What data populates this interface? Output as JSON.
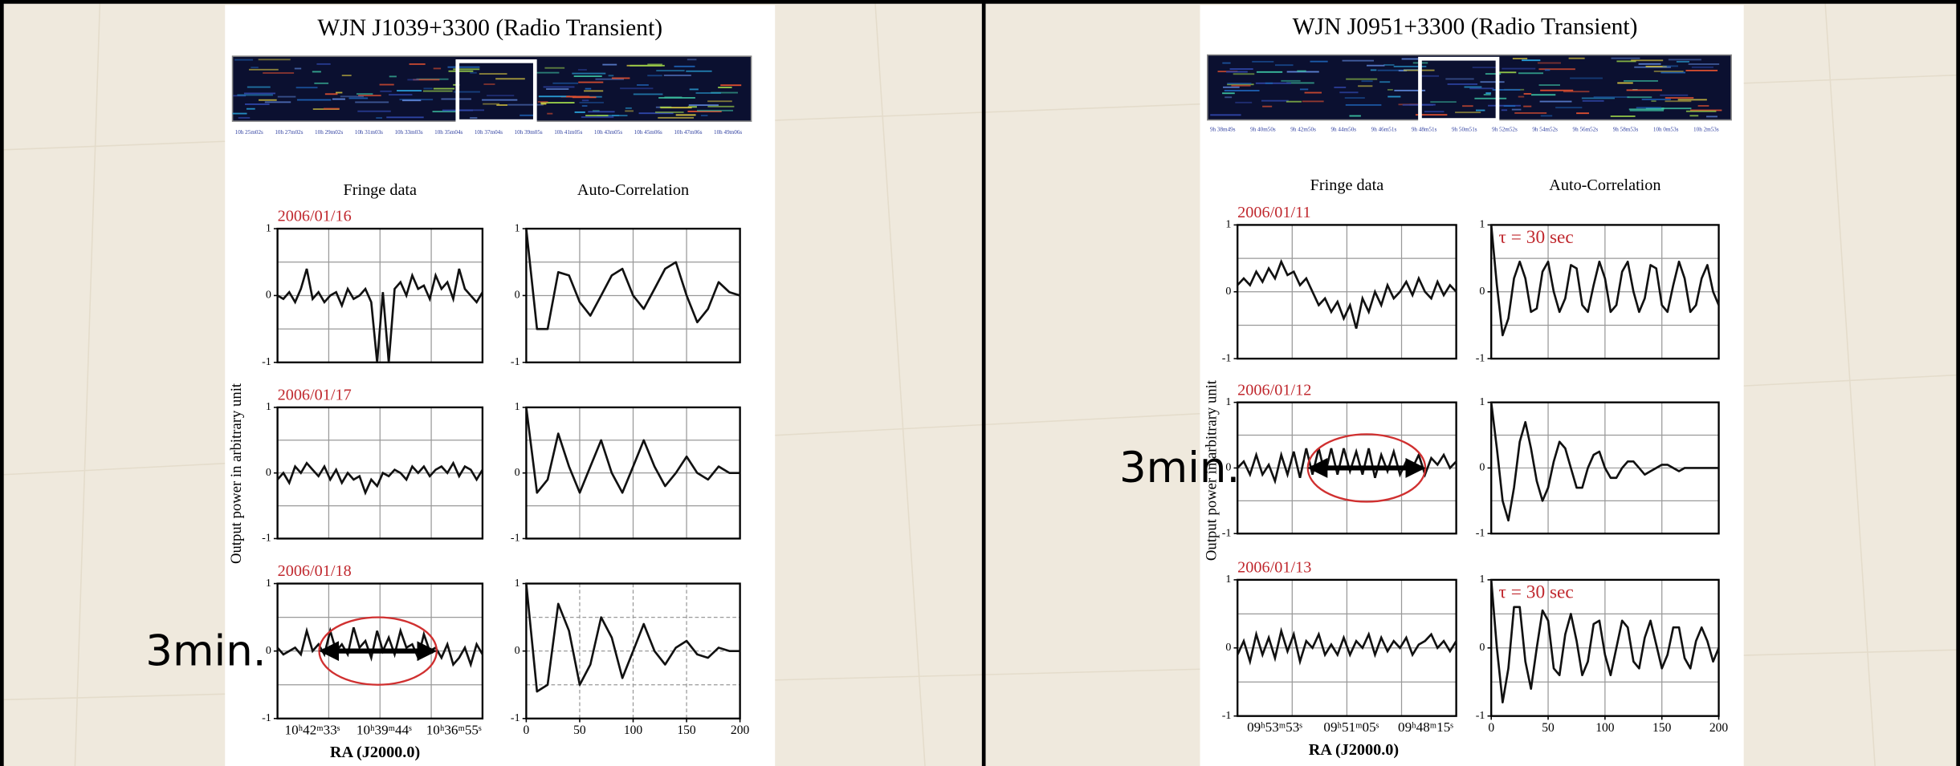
{
  "panels": [
    {
      "title": "WJN J1039+3300 (Radio Transient)",
      "spectrogram_labels": [
        "10h 25m02s",
        "10h 27m02s",
        "10h 29m02s",
        "10h 31m03s",
        "10h 33m03s",
        "10h 35m04s",
        "10h 37m04s",
        "10h 39m05s",
        "10h 41m05s",
        "10h 43m05s",
        "10h 45m06s",
        "10h 47m06s",
        "10h 49m06s"
      ],
      "fringe_title": "Fringe data",
      "auto_title": "Auto-Correlation",
      "y_label": "Output power in arbitrary unit",
      "x_label": "RA (J2000.0)",
      "fringe_xticks": [
        "10ʰ42ᵐ33ˢ",
        "10ʰ39ᵐ44ˢ",
        "10ʰ36ᵐ55ˢ"
      ],
      "ylim": [
        -1,
        1
      ],
      "yticks": [
        -1,
        0,
        1
      ],
      "lag_lim": [
        0,
        200
      ],
      "lag_ticks": [
        0,
        50,
        100,
        150,
        200
      ],
      "lags": [
        0,
        10,
        20,
        30,
        40,
        50,
        60,
        70,
        80,
        90,
        100,
        110,
        120,
        130,
        140,
        150,
        160,
        170,
        180,
        190,
        200
      ],
      "rows": [
        {
          "date": "2006/01/16",
          "fringe": [
            0,
            -0.05,
            0.05,
            -0.1,
            0.1,
            0.4,
            -0.05,
            0.05,
            -0.1,
            0,
            0.05,
            -0.15,
            0.1,
            -0.05,
            0,
            0.1,
            -0.1,
            -1,
            0.05,
            -1,
            0.1,
            0.2,
            0,
            0.3,
            0.1,
            0.15,
            -0.05,
            0.3,
            0.1,
            0.2,
            -0.05,
            0.4,
            0.1,
            0,
            -0.1,
            0.05
          ],
          "auto": [
            1,
            -0.5,
            -0.5,
            0.35,
            0.3,
            -0.1,
            -0.3,
            0,
            0.3,
            0.4,
            0,
            -0.2,
            0.1,
            0.4,
            0.5,
            0,
            -0.4,
            -0.2,
            0.2,
            0.05,
            0
          ]
        },
        {
          "date": "2006/01/17",
          "fringe": [
            -0.1,
            0,
            -0.15,
            0.1,
            0,
            0.15,
            0.05,
            -0.05,
            0.1,
            -0.1,
            0.05,
            -0.15,
            0,
            -0.1,
            -0.05,
            -0.3,
            -0.1,
            -0.2,
            0,
            -0.05,
            0.05,
            0,
            -0.1,
            0.1,
            0,
            0.1,
            -0.05,
            0.05,
            0.1,
            0,
            0.15,
            -0.05,
            0.1,
            0.05,
            -0.1,
            0.05
          ],
          "auto": [
            1,
            -0.3,
            -0.1,
            0.6,
            0.1,
            -0.3,
            0.1,
            0.5,
            0,
            -0.3,
            0.1,
            0.5,
            0.1,
            -0.2,
            0,
            0.25,
            0,
            -0.1,
            0.1,
            0,
            0
          ]
        },
        {
          "date": "2006/01/18",
          "annotation": "3min.",
          "fringe": [
            0.05,
            -0.05,
            0,
            0.05,
            -0.05,
            0.3,
            0,
            0.1,
            -0.05,
            0.3,
            0,
            0.1,
            -0.05,
            0.35,
            0.05,
            0.15,
            -0.1,
            0.3,
            0,
            0.2,
            -0.05,
            0.3,
            0.05,
            0.1,
            -0.1,
            0.25,
            0,
            0.05,
            -0.1,
            0.1,
            -0.2,
            -0.1,
            0.05,
            -0.2,
            0.1,
            -0.05
          ],
          "auto": [
            1,
            -0.6,
            -0.5,
            0.7,
            0.3,
            -0.5,
            -0.2,
            0.5,
            0.2,
            -0.4,
            0,
            0.4,
            0,
            -0.2,
            0.05,
            0.15,
            -0.05,
            -0.1,
            0.05,
            0,
            0
          ]
        }
      ]
    },
    {
      "title": "WJN J0951+3300 (Radio Transient)",
      "spectrogram_labels": [
        "9h 38m49s",
        "9h 40m50s",
        "9h 42m50s",
        "9h 44m50s",
        "9h 46m51s",
        "9h 48m51s",
        "9h 50m51s",
        "9h 52m52s",
        "9h 54m52s",
        "9h 56m52s",
        "9h 58m53s",
        "10h 0m53s",
        "10h 2m53s"
      ],
      "fringe_title": "Fringe data",
      "auto_title": "Auto-Correlation",
      "y_label": "Output power in arbitrary unit",
      "x_label": "RA (J2000.0)",
      "fringe_xticks": [
        "09ʰ53ᵐ53ˢ",
        "09ʰ51ᵐ05ˢ",
        "09ʰ48ᵐ15ˢ"
      ],
      "ylim": [
        -1,
        1
      ],
      "yticks": [
        -1,
        0,
        1
      ],
      "lag_lim": [
        0,
        200
      ],
      "lag_ticks": [
        0,
        50,
        100,
        150,
        200
      ],
      "lags": [
        0,
        5,
        10,
        15,
        20,
        25,
        30,
        35,
        40,
        45,
        50,
        55,
        60,
        65,
        70,
        75,
        80,
        85,
        90,
        95,
        100,
        105,
        110,
        115,
        120,
        125,
        130,
        135,
        140,
        145,
        150,
        155,
        160,
        165,
        170,
        175,
        180,
        185,
        190,
        195,
        200
      ],
      "rows": [
        {
          "date": "2006/01/11",
          "auto_note": "τ = 30 sec",
          "fringe": [
            0.1,
            0.2,
            0.1,
            0.3,
            0.15,
            0.35,
            0.2,
            0.45,
            0.25,
            0.3,
            0.1,
            0.2,
            0,
            -0.2,
            -0.1,
            -0.3,
            -0.15,
            -0.4,
            -0.2,
            -0.55,
            -0.1,
            -0.3,
            0,
            -0.2,
            0.1,
            -0.1,
            0,
            0.15,
            -0.05,
            0.2,
            0,
            -0.1,
            0.15,
            -0.05,
            0.1,
            0
          ],
          "auto": [
            1,
            0.1,
            -0.65,
            -0.4,
            0.2,
            0.45,
            0.2,
            -0.3,
            -0.25,
            0.3,
            0.45,
            0,
            -0.3,
            -0.1,
            0.4,
            0.35,
            -0.2,
            -0.3,
            0.1,
            0.45,
            0.2,
            -0.3,
            -0.2,
            0.3,
            0.45,
            0,
            -0.3,
            -0.1,
            0.4,
            0.35,
            -0.2,
            -0.3,
            0.1,
            0.45,
            0.2,
            -0.3,
            -0.2,
            0.2,
            0.4,
            0,
            -0.2
          ]
        },
        {
          "date": "2006/01/12",
          "annotation": "3min.",
          "fringe": [
            0,
            0.1,
            -0.1,
            0.2,
            -0.1,
            0.05,
            -0.2,
            0.2,
            -0.1,
            0.25,
            -0.15,
            0.3,
            -0.1,
            0.3,
            -0.1,
            0.3,
            -0.1,
            0.3,
            -0.05,
            0.25,
            -0.1,
            0.3,
            -0.15,
            0.2,
            -0.05,
            0.25,
            -0.1,
            0.1,
            0,
            0.2,
            -0.1,
            0.15,
            0.05,
            0.2,
            0,
            0.1
          ],
          "auto": [
            1,
            0.3,
            -0.5,
            -0.8,
            -0.3,
            0.4,
            0.7,
            0.3,
            -0.2,
            -0.5,
            -0.3,
            0.1,
            0.4,
            0.3,
            0,
            -0.3,
            -0.3,
            0,
            0.2,
            0.25,
            0,
            -0.15,
            -0.15,
            0,
            0.1,
            0.1,
            0,
            -0.1,
            -0.05,
            0,
            0.05,
            0.05,
            0,
            -0.05,
            0,
            0,
            0,
            0,
            0,
            0,
            0
          ]
        },
        {
          "date": "2006/01/13",
          "auto_note": "τ = 30 sec",
          "fringe": [
            -0.1,
            0.1,
            -0.2,
            0.2,
            -0.1,
            0.15,
            -0.15,
            0.25,
            -0.05,
            0.2,
            -0.2,
            0.1,
            0,
            0.2,
            -0.1,
            0.05,
            -0.1,
            0.15,
            -0.1,
            0.1,
            0,
            0.2,
            -0.1,
            0.15,
            -0.05,
            0.1,
            0,
            0.15,
            -0.1,
            0.05,
            0.1,
            0.2,
            0,
            0.1,
            -0.05,
            0.1
          ],
          "auto": [
            1,
            0,
            -0.8,
            -0.3,
            0.6,
            0.6,
            -0.2,
            -0.6,
            0,
            0.55,
            0.4,
            -0.3,
            -0.4,
            0.2,
            0.5,
            0.1,
            -0.4,
            -0.2,
            0.35,
            0.4,
            -0.1,
            -0.4,
            0,
            0.4,
            0.3,
            -0.2,
            -0.3,
            0.15,
            0.4,
            0.05,
            -0.3,
            -0.1,
            0.3,
            0.3,
            -0.15,
            -0.3,
            0.1,
            0.3,
            0.1,
            -0.2,
            0
          ]
        }
      ]
    }
  ]
}
